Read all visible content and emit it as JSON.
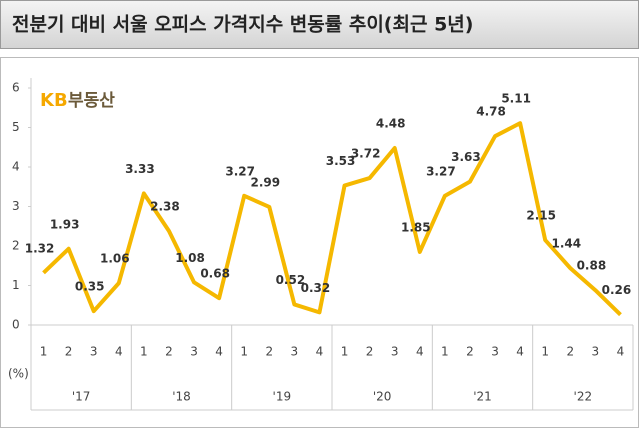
{
  "chart_data": {
    "type": "line",
    "title": "전분기 대비 서울 오피스 가격지수 변동률 추이(최근 5년)",
    "logo": {
      "brand": "KB",
      "text": "부동산"
    },
    "y_unit": "(%)",
    "categories": [
      "1",
      "2",
      "3",
      "4",
      "1",
      "2",
      "3",
      "4",
      "1",
      "2",
      "3",
      "4",
      "1",
      "2",
      "3",
      "4",
      "1",
      "2",
      "3",
      "4",
      "1",
      "2",
      "3",
      "4"
    ],
    "groups": [
      "'17",
      "'18",
      "'19",
      "'20",
      "'21",
      "'22"
    ],
    "series": [
      {
        "name": "변동률",
        "color": "#f5b800",
        "values": [
          1.32,
          1.93,
          0.35,
          1.06,
          3.33,
          2.38,
          1.08,
          0.68,
          3.27,
          2.99,
          0.52,
          0.32,
          3.53,
          3.72,
          4.48,
          1.85,
          3.27,
          3.63,
          4.78,
          5.11,
          2.15,
          1.44,
          0.88,
          0.26
        ]
      }
    ],
    "ylim": [
      0,
      6
    ],
    "yticks": [
      0,
      1,
      2,
      3,
      4,
      5,
      6
    ]
  }
}
